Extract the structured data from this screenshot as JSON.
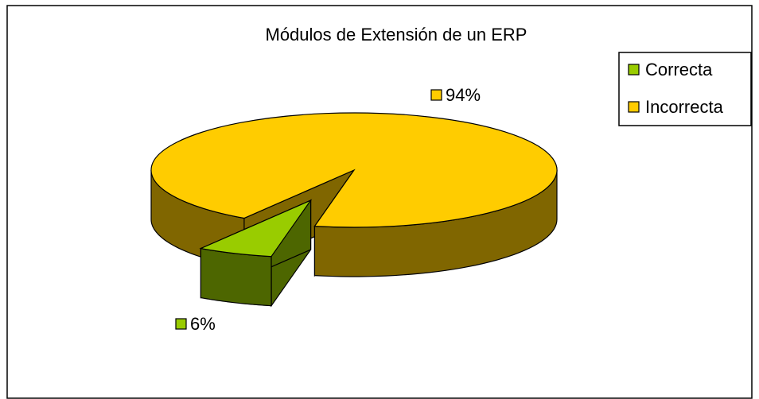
{
  "chart_data": {
    "type": "pie3d",
    "title": "Módulos de Extensión de un ERP",
    "categories": [
      "Correcta",
      "Incorrecta"
    ],
    "values": [
      6,
      94
    ],
    "value_labels": [
      "6%",
      "94%"
    ],
    "colors": [
      "#99cc00",
      "#ffcc00"
    ],
    "legend": "right"
  }
}
